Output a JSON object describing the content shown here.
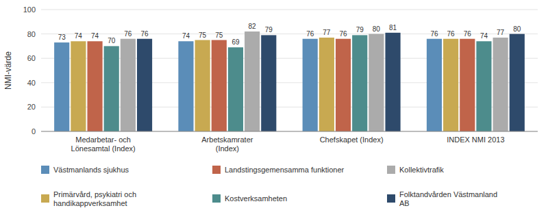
{
  "chart_data": {
    "type": "bar",
    "categories": [
      "Medarbetar- och\nLönesamtal (Index)",
      "Arbetskamrater\n(Index)",
      "Chefskapet (Index)",
      "INDEX NMI 2013"
    ],
    "series": [
      {
        "name": "Västmanlands sjukhus",
        "color": "#5B8DB8",
        "values": [
          73,
          74,
          76,
          76
        ]
      },
      {
        "name": "Primärvård, psykiatri och\nhandikappverksamhet",
        "color": "#C8A951",
        "values": [
          74,
          75,
          77,
          76
        ]
      },
      {
        "name": "Landstingsgemensamma funktioner",
        "color": "#C0644A",
        "values": [
          74,
          75,
          76,
          76
        ]
      },
      {
        "name": "Kostverksamheten",
        "color": "#4D8C8C",
        "values": [
          70,
          69,
          79,
          74
        ]
      },
      {
        "name": "Kollektivtrafik",
        "color": "#ABABAB",
        "values": [
          76,
          82,
          80,
          77
        ]
      },
      {
        "name": "Folktandvården Västmanland\nAB",
        "color": "#2E4A6B",
        "values": [
          76,
          79,
          81,
          80
        ]
      }
    ],
    "y_label": "NMI-värde",
    "ylim": [
      0,
      100
    ],
    "yticks": [
      0,
      20,
      40,
      60,
      80,
      100
    ],
    "grid": true,
    "data_labels": true,
    "legend": "bottom"
  }
}
